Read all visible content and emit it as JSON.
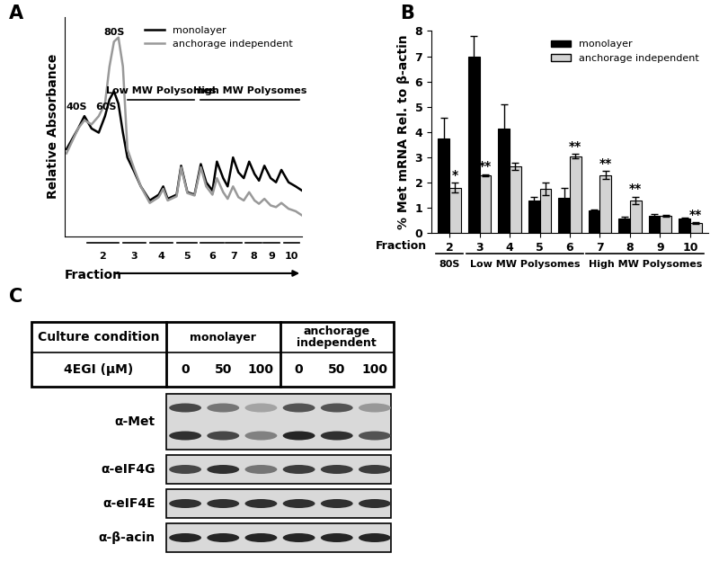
{
  "chart_data": [
    {
      "type": "line",
      "title": "A",
      "x_label": "Fraction",
      "y_label": "Relative Absorbance",
      "x": [
        2,
        15,
        22,
        30,
        38,
        45,
        50,
        55,
        60,
        65,
        70,
        78,
        85,
        95,
        105,
        110,
        115,
        125,
        130,
        137,
        145,
        152,
        158,
        165,
        170,
        177,
        182,
        188,
        194,
        200,
        206,
        212,
        217,
        223,
        230,
        236,
        242,
        250,
        258,
        265
      ],
      "xlim": [
        0,
        265
      ],
      "ylim": [
        0,
        265
      ],
      "tick_labels": false,
      "legend": "upper right",
      "series": [
        {
          "name": "monolayer",
          "color": "#000000",
          "values": [
            105,
            130,
            145,
            130,
            125,
            145,
            165,
            175,
            160,
            125,
            95,
            77,
            60,
            43,
            50,
            60,
            45,
            50,
            85,
            53,
            50,
            87,
            65,
            55,
            90,
            70,
            60,
            95,
            77,
            70,
            90,
            75,
            67,
            85,
            70,
            65,
            80,
            65,
            60,
            55
          ]
        },
        {
          "name": "anchorage independent",
          "color": "#999999",
          "values": [
            100,
            130,
            140,
            135,
            145,
            160,
            205,
            235,
            240,
            205,
            105,
            80,
            60,
            40,
            47,
            57,
            43,
            48,
            83,
            52,
            49,
            83,
            60,
            50,
            70,
            53,
            45,
            60,
            47,
            43,
            53,
            43,
            39,
            45,
            37,
            35,
            40,
            33,
            30,
            25
          ]
        }
      ],
      "annotations": [
        {
          "text": "40S",
          "x": 22
        },
        {
          "text": "60S",
          "x": 38
        },
        {
          "text": "80S",
          "x": 55
        }
      ],
      "brackets": [
        {
          "text": "Low MW Polysomes",
          "start": 70,
          "end": 145
        },
        {
          "text": "High MW Polysomes",
          "start": 152,
          "end": 262
        }
      ],
      "fractions": [
        {
          "label": 2,
          "start": 25,
          "end": 60
        },
        {
          "label": 3,
          "start": 65,
          "end": 90
        },
        {
          "label": 4,
          "start": 95,
          "end": 120
        },
        {
          "label": 5,
          "start": 125,
          "end": 148
        },
        {
          "label": 6,
          "start": 152,
          "end": 178
        },
        {
          "label": 7,
          "start": 180,
          "end": 198
        },
        {
          "label": 8,
          "start": 202,
          "end": 220
        },
        {
          "label": 9,
          "start": 222,
          "end": 240
        },
        {
          "label": 10,
          "start": 245,
          "end": 262
        }
      ]
    },
    {
      "type": "bar",
      "title": "B",
      "x_label": "Fraction",
      "y_label": "% Met mRNA Rel. to β-actin",
      "categories": [
        "2",
        "3",
        "4",
        "5",
        "6",
        "7",
        "8",
        "9",
        "10"
      ],
      "ylim": [
        0,
        8
      ],
      "yticks": [
        0,
        1,
        2,
        3,
        4,
        5,
        6,
        7,
        8
      ],
      "legend": "upper right",
      "series": [
        {
          "name": "monolayer",
          "color": "#000000",
          "values": [
            3.75,
            7.0,
            4.15,
            1.3,
            1.4,
            0.9,
            0.6,
            0.7,
            0.6
          ],
          "errors": [
            0.8,
            0.8,
            0.95,
            0.15,
            0.4,
            0.05,
            0.05,
            0.05,
            0.03
          ]
        },
        {
          "name": "anchorage independent",
          "color": "#d3d3d3",
          "values": [
            1.8,
            2.3,
            2.65,
            1.75,
            3.05,
            2.3,
            1.3,
            0.7,
            0.4
          ],
          "errors": [
            0.2,
            0.03,
            0.15,
            0.25,
            0.08,
            0.15,
            0.15,
            0.03,
            0.03
          ],
          "significance": [
            "*",
            "**",
            null,
            null,
            "**",
            "**",
            "**",
            null,
            "**"
          ]
        }
      ],
      "groups": [
        {
          "text": "80S",
          "start": "2",
          "end": "2"
        },
        {
          "text": "Low MW Polysomes",
          "start": "3",
          "end": "6"
        },
        {
          "text": "High MW Polysomes",
          "start": "7",
          "end": "10"
        }
      ]
    }
  ],
  "blot": {
    "title": "C",
    "header": {
      "label": "Culture condition",
      "groups": [
        "monolayer",
        "anchorage independent"
      ]
    },
    "dose_row": {
      "label": "4EGI (μM)",
      "lanes": [
        0,
        50,
        100,
        0,
        50,
        100
      ]
    },
    "rows": [
      {
        "label": "α-Met",
        "bands": [
          [
            0.8,
            0.6,
            0.4,
            0.75,
            0.75,
            0.45
          ],
          [
            0.9,
            0.8,
            0.55,
            0.95,
            0.9,
            0.75
          ]
        ]
      },
      {
        "label": "α-eIF4G",
        "bands": [
          [
            0.8,
            0.9,
            0.6,
            0.85,
            0.85,
            0.85
          ]
        ]
      },
      {
        "label": "α-eIF4E",
        "bands": [
          [
            0.9,
            0.9,
            0.9,
            0.9,
            0.9,
            0.9
          ]
        ]
      },
      {
        "label": "α-β-acin",
        "bands": [
          [
            0.95,
            0.95,
            0.95,
            0.95,
            0.95,
            0.95
          ]
        ]
      }
    ]
  }
}
